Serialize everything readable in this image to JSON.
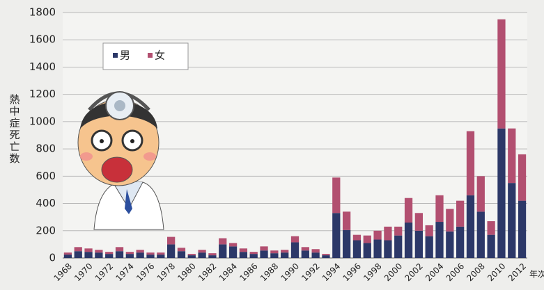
{
  "chart_data": {
    "type": "stacked-bar",
    "y_label": "熱中症死亡数",
    "x_label": "年次",
    "categories": [
      "1968",
      null,
      "1970",
      null,
      "1972",
      null,
      "1974",
      null,
      "1976",
      null,
      "1978",
      null,
      "1980",
      null,
      "1982",
      null,
      "1984",
      null,
      "1986",
      null,
      "1988",
      null,
      "1990",
      null,
      "1992",
      null,
      "1994",
      null,
      "1996",
      null,
      "1998",
      null,
      "2000",
      null,
      "2002",
      null,
      "2004",
      null,
      "2006",
      null,
      "2008",
      null,
      "2010",
      null,
      "2012"
    ],
    "series": [
      {
        "name": "男",
        "color": "#2c3868",
        "values": [
          25,
          50,
          45,
          40,
          30,
          50,
          30,
          40,
          25,
          25,
          100,
          50,
          20,
          40,
          20,
          100,
          85,
          45,
          30,
          55,
          35,
          40,
          115,
          55,
          40,
          20,
          330,
          205,
          130,
          110,
          135,
          130,
          165,
          260,
          200,
          160,
          265,
          195,
          230,
          460,
          340,
          170,
          950,
          550,
          420
        ]
      },
      {
        "name": "女",
        "color": "#b24f70",
        "values": [
          15,
          30,
          25,
          20,
          15,
          30,
          15,
          20,
          15,
          15,
          55,
          25,
          10,
          20,
          15,
          45,
          25,
          25,
          15,
          30,
          20,
          20,
          45,
          25,
          25,
          10,
          260,
          135,
          40,
          55,
          65,
          100,
          65,
          180,
          130,
          80,
          195,
          165,
          190,
          470,
          260,
          100,
          800,
          400,
          340
        ]
      }
    ],
    "ylim": [
      0,
      1800
    ],
    "yticks": [
      0,
      200,
      400,
      600,
      800,
      1000,
      1200,
      1400,
      1600,
      1800
    ],
    "grid": true
  }
}
